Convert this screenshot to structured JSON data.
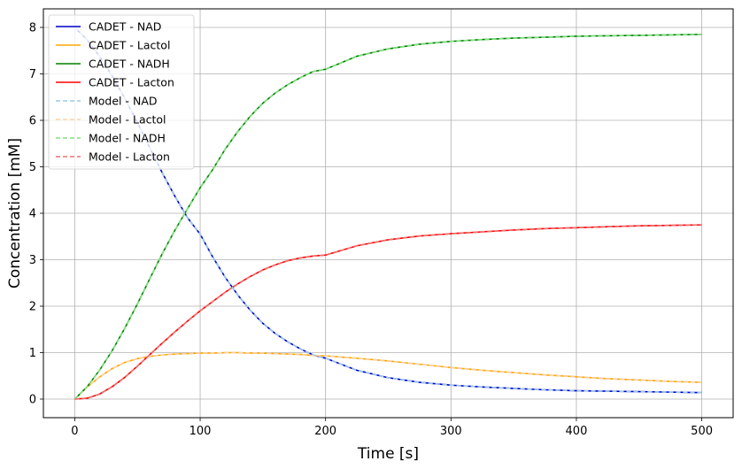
{
  "chart_data": {
    "type": "line",
    "xlabel": "Time [s]",
    "ylabel": "Concentration [mM]",
    "xlim": [
      -25,
      525
    ],
    "ylim": [
      -0.4,
      8.4
    ],
    "xticks": [
      0,
      100,
      200,
      300,
      400,
      500
    ],
    "yticks": [
      0,
      1,
      2,
      3,
      4,
      5,
      6,
      7,
      8
    ],
    "grid": true,
    "legend_position": "top-left",
    "x": [
      0,
      10,
      20,
      30,
      40,
      50,
      60,
      70,
      80,
      90,
      100,
      110,
      120,
      130,
      140,
      150,
      160,
      170,
      180,
      190,
      200,
      225,
      250,
      275,
      300,
      325,
      350,
      375,
      400,
      425,
      450,
      475,
      500
    ],
    "series": [
      {
        "name": "CADET - NAD",
        "color": "#0000cc",
        "style": "solid",
        "values": [
          8.0,
          7.73,
          7.37,
          6.95,
          6.47,
          5.95,
          5.4,
          4.86,
          4.36,
          3.9,
          3.55,
          3.06,
          2.62,
          2.24,
          1.91,
          1.63,
          1.41,
          1.23,
          1.08,
          0.95,
          0.88,
          0.62,
          0.46,
          0.36,
          0.3,
          0.26,
          0.23,
          0.2,
          0.18,
          0.17,
          0.16,
          0.15,
          0.14
        ]
      },
      {
        "name": "CADET - Lactol",
        "color": "#ffa500",
        "style": "solid",
        "values": [
          0.0,
          0.26,
          0.48,
          0.66,
          0.79,
          0.87,
          0.92,
          0.95,
          0.97,
          0.98,
          0.99,
          0.99,
          1.0,
          1.0,
          0.99,
          0.99,
          0.98,
          0.97,
          0.96,
          0.94,
          0.93,
          0.88,
          0.82,
          0.75,
          0.68,
          0.62,
          0.57,
          0.52,
          0.48,
          0.44,
          0.41,
          0.38,
          0.36
        ]
      },
      {
        "name": "CADET - NADH",
        "color": "#008000",
        "style": "solid",
        "values": [
          0.0,
          0.27,
          0.63,
          1.05,
          1.53,
          2.05,
          2.6,
          3.14,
          3.64,
          4.1,
          4.55,
          4.94,
          5.38,
          5.76,
          6.09,
          6.37,
          6.59,
          6.77,
          6.92,
          7.05,
          7.1,
          7.38,
          7.54,
          7.64,
          7.7,
          7.74,
          7.77,
          7.79,
          7.81,
          7.82,
          7.83,
          7.84,
          7.85
        ]
      },
      {
        "name": "CADET - Lacton",
        "color": "#ff0000",
        "style": "solid",
        "values": [
          0.0,
          0.02,
          0.11,
          0.27,
          0.47,
          0.71,
          0.96,
          1.21,
          1.45,
          1.68,
          1.9,
          2.1,
          2.3,
          2.48,
          2.64,
          2.78,
          2.89,
          2.98,
          3.04,
          3.08,
          3.1,
          3.3,
          3.43,
          3.51,
          3.56,
          3.6,
          3.64,
          3.67,
          3.69,
          3.71,
          3.73,
          3.74,
          3.75
        ]
      },
      {
        "name": "Model - NAD",
        "color": "#9cc9ec",
        "style": "dashed",
        "values": [
          8.0,
          7.73,
          7.37,
          6.95,
          6.47,
          5.95,
          5.4,
          4.86,
          4.36,
          3.9,
          3.55,
          3.06,
          2.62,
          2.24,
          1.91,
          1.63,
          1.41,
          1.23,
          1.08,
          0.95,
          0.88,
          0.62,
          0.46,
          0.36,
          0.3,
          0.26,
          0.23,
          0.2,
          0.18,
          0.17,
          0.16,
          0.15,
          0.14
        ]
      },
      {
        "name": "Model - Lactol",
        "color": "#ffd3a3",
        "style": "dashed",
        "values": [
          0.0,
          0.26,
          0.48,
          0.66,
          0.79,
          0.87,
          0.92,
          0.95,
          0.97,
          0.98,
          0.99,
          0.99,
          1.0,
          1.0,
          0.99,
          0.99,
          0.98,
          0.97,
          0.96,
          0.94,
          0.93,
          0.88,
          0.82,
          0.75,
          0.68,
          0.62,
          0.57,
          0.52,
          0.48,
          0.44,
          0.41,
          0.38,
          0.36
        ]
      },
      {
        "name": "Model - NADH",
        "color": "#7fe07f",
        "style": "dashed",
        "values": [
          0.0,
          0.27,
          0.63,
          1.05,
          1.53,
          2.05,
          2.6,
          3.14,
          3.64,
          4.1,
          4.55,
          4.94,
          5.38,
          5.76,
          6.09,
          6.37,
          6.59,
          6.77,
          6.92,
          7.05,
          7.1,
          7.38,
          7.54,
          7.64,
          7.7,
          7.74,
          7.77,
          7.79,
          7.81,
          7.82,
          7.83,
          7.84,
          7.85
        ]
      },
      {
        "name": "Model - Lacton",
        "color": "#f07070",
        "style": "dashed",
        "values": [
          0.0,
          0.02,
          0.11,
          0.27,
          0.47,
          0.71,
          0.96,
          1.21,
          1.45,
          1.68,
          1.9,
          2.1,
          2.3,
          2.48,
          2.64,
          2.78,
          2.89,
          2.98,
          3.04,
          3.08,
          3.1,
          3.3,
          3.43,
          3.51,
          3.56,
          3.6,
          3.64,
          3.67,
          3.69,
          3.71,
          3.73,
          3.74,
          3.75
        ]
      }
    ]
  }
}
